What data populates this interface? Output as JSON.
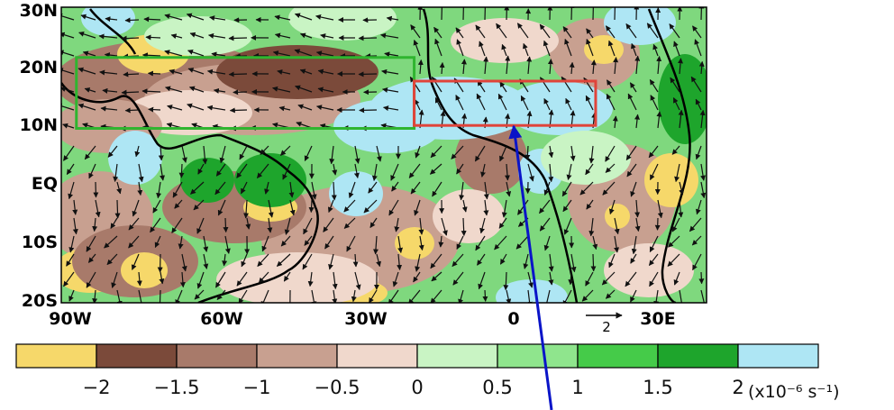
{
  "map": {
    "lat_labels": [
      "30N",
      "20N",
      "10N",
      "EQ",
      "10S",
      "20S"
    ],
    "lon_labels": [
      "90W",
      "60W",
      "30W",
      "0",
      "30E"
    ],
    "reference_vector_label": "2",
    "boxes": [
      {
        "name": "green-box",
        "color": "#2fb52f",
        "lon": [
          -87,
          -20
        ],
        "lat": [
          9.5,
          21.5
        ]
      },
      {
        "name": "red-box",
        "color": "#e0443a",
        "lon": [
          -20,
          16
        ],
        "lat": [
          10,
          17.5
        ]
      }
    ],
    "colors": {
      "land_outline": "#000000",
      "annotation_arrow": "#0a14c8"
    }
  },
  "colorbar": {
    "bins": [
      {
        "color": "#f6d86a"
      },
      {
        "color": "#7b4a3a"
      },
      {
        "color": "#a87a6a"
      },
      {
        "color": "#c8a090"
      },
      {
        "color": "#f0d8cc"
      },
      {
        "color": "#c9f4c4"
      },
      {
        "color": "#8fe58d"
      },
      {
        "color": "#45cb49"
      },
      {
        "color": "#1ea52c"
      },
      {
        "color": "#aee6f4"
      }
    ],
    "labels": [
      "−2",
      "−1.5",
      "−1",
      "−0.5",
      "0",
      "0.5",
      "1",
      "1.5",
      "2"
    ],
    "unit": "(x10⁻⁶ s⁻¹)"
  }
}
